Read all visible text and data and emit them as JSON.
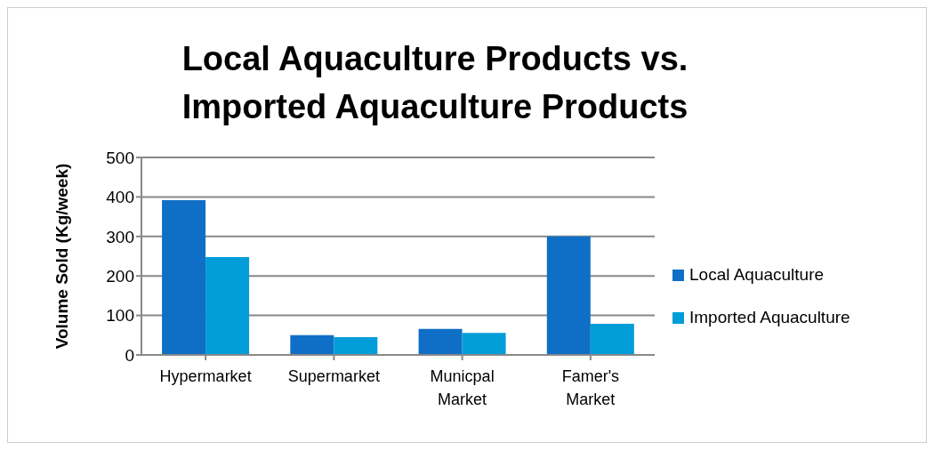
{
  "chart_data": {
    "type": "bar",
    "title": "Local Aquaculture Products vs. Imported Aquaculture Products",
    "ylabel": "Volume Sold (Kg/week)",
    "categories": [
      "Hypermarket",
      "Supermarket",
      "Municpal Market",
      "Famer's Market"
    ],
    "series": [
      {
        "name": "Local Aquaculture",
        "color": "#0f6fc6",
        "values": [
          392,
          50,
          66,
          300
        ]
      },
      {
        "name": "Imported Aquaculture",
        "color": "#009dd9",
        "values": [
          248,
          45,
          56,
          79
        ]
      }
    ],
    "ylim": [
      0,
      500
    ],
    "yticks": [
      0,
      100,
      200,
      300,
      400,
      500
    ],
    "grid": "y",
    "legend": "right"
  }
}
